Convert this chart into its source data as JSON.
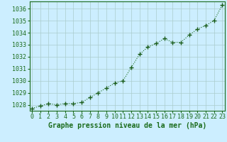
{
  "x": [
    0,
    1,
    2,
    3,
    4,
    5,
    6,
    7,
    8,
    9,
    10,
    11,
    12,
    13,
    14,
    15,
    16,
    17,
    18,
    19,
    20,
    21,
    22,
    23
  ],
  "y": [
    1027.7,
    1027.9,
    1028.1,
    1028.0,
    1028.1,
    1028.1,
    1028.2,
    1028.6,
    1029.0,
    1029.4,
    1029.8,
    1030.0,
    1031.1,
    1032.2,
    1032.8,
    1033.1,
    1033.5,
    1033.2,
    1033.2,
    1033.8,
    1034.3,
    1034.6,
    1035.0,
    1036.3
  ],
  "xlabel": "Graphe pression niveau de la mer (hPa)",
  "line_color": "#1a6b1a",
  "marker": "+",
  "marker_size": 4.5,
  "background_color": "#cceeff",
  "grid_color": "#aacccc",
  "text_color": "#1a6b1a",
  "ylim": [
    1027.5,
    1036.6
  ],
  "yticks": [
    1028,
    1029,
    1030,
    1031,
    1032,
    1033,
    1034,
    1035,
    1036
  ],
  "xlim": [
    -0.3,
    23.3
  ],
  "xticks": [
    0,
    1,
    2,
    3,
    4,
    5,
    6,
    7,
    8,
    9,
    10,
    11,
    12,
    13,
    14,
    15,
    16,
    17,
    18,
    19,
    20,
    21,
    22,
    23
  ],
  "tick_fontsize": 6,
  "title_fontsize": 7,
  "line_width": 0.8,
  "marker_color": "#1a5c1a"
}
